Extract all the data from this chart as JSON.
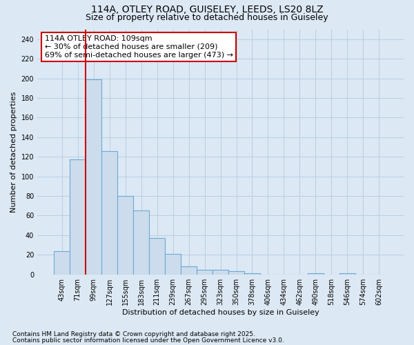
{
  "title1": "114A, OTLEY ROAD, GUISELEY, LEEDS, LS20 8LZ",
  "title2": "Size of property relative to detached houses in Guiseley",
  "xlabel": "Distribution of detached houses by size in Guiseley",
  "ylabel": "Number of detached properties",
  "categories": [
    "43sqm",
    "71sqm",
    "99sqm",
    "127sqm",
    "155sqm",
    "183sqm",
    "211sqm",
    "239sqm",
    "267sqm",
    "295sqm",
    "323sqm",
    "350sqm",
    "378sqm",
    "406sqm",
    "434sqm",
    "462sqm",
    "490sqm",
    "518sqm",
    "546sqm",
    "574sqm",
    "602sqm"
  ],
  "values": [
    24,
    117,
    199,
    126,
    80,
    65,
    37,
    21,
    8,
    5,
    5,
    3,
    1,
    0,
    0,
    0,
    1,
    0,
    1,
    0,
    0
  ],
  "bar_color": "#ccdcec",
  "bar_edge_color": "#6aaad4",
  "grid_color": "#b8cfe0",
  "bg_color": "#dce8f4",
  "annotation_text": "114A OTLEY ROAD: 109sqm\n← 30% of detached houses are smaller (209)\n69% of semi-detached houses are larger (473) →",
  "annotation_box_color": "#ffffff",
  "annotation_box_edge": "#cc0000",
  "vline_x_index": 2,
  "vline_color": "#cc0000",
  "ylim": [
    0,
    250
  ],
  "yticks": [
    0,
    20,
    40,
    60,
    80,
    100,
    120,
    140,
    160,
    180,
    200,
    220,
    240
  ],
  "footer1": "Contains HM Land Registry data © Crown copyright and database right 2025.",
  "footer2": "Contains public sector information licensed under the Open Government Licence v3.0.",
  "title_fontsize": 10,
  "subtitle_fontsize": 9,
  "axis_label_fontsize": 8,
  "tick_fontsize": 7,
  "annotation_fontsize": 8,
  "footer_fontsize": 6.5
}
